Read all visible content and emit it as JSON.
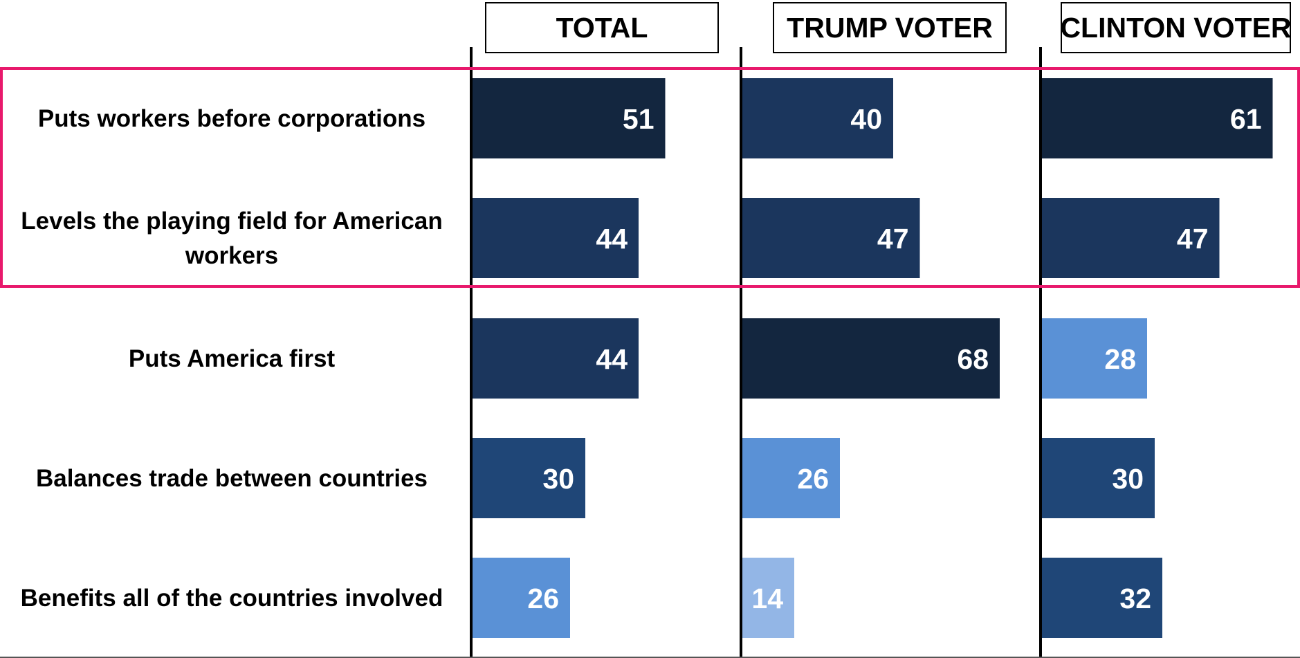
{
  "chart_data": {
    "type": "bar",
    "orientation": "horizontal",
    "panels": [
      "TOTAL",
      "TRUMP VOTER",
      "CLINTON VOTER"
    ],
    "categories": [
      [
        "Puts workers before corporations"
      ],
      [
        "Levels the playing field for American",
        "workers"
      ],
      [
        "Puts America first"
      ],
      [
        "Balances trade between countries"
      ],
      [
        "Benefits all of the countries involved"
      ]
    ],
    "series": [
      {
        "values": [
          51,
          44,
          44,
          30,
          26
        ]
      },
      {
        "values": [
          40,
          47,
          68,
          26,
          14
        ]
      },
      {
        "values": [
          61,
          47,
          28,
          30,
          32
        ]
      }
    ],
    "highlight": {
      "categories": [
        0,
        1
      ],
      "color": "#e8196c"
    },
    "colors": {
      "darkest": "#13263f",
      "dark": "#1b365d",
      "medium": "#1f4677",
      "light": "#5a91d6",
      "lightest": "#93b6e6",
      "axis": "#000000",
      "value_text": "#ffffff"
    },
    "bar_colors": [
      [
        "darkest",
        "dark",
        "dark",
        "medium",
        "light"
      ],
      [
        "dark",
        "dark",
        "darkest",
        "light",
        "lightest"
      ],
      [
        "darkest",
        "dark",
        "light",
        "medium",
        "medium"
      ]
    ],
    "xlim": [
      0,
      100
    ],
    "grid": false,
    "legend": "none"
  }
}
